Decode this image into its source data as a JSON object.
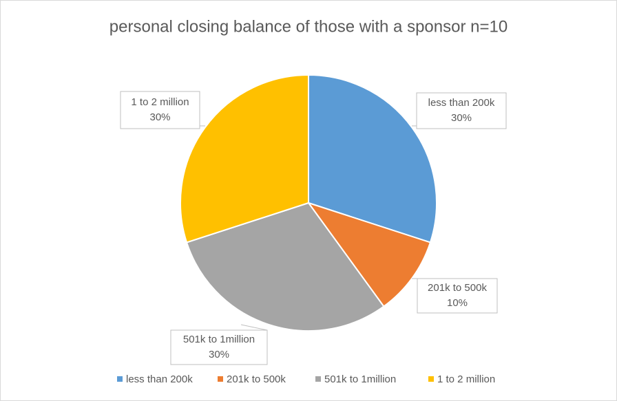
{
  "chart_data": {
    "type": "pie",
    "title": "personal closing balance of those with a sponsor  n=10",
    "categories": [
      "less than 200k",
      "201k to 500k",
      "501k to 1million",
      "1 to 2 million"
    ],
    "values": [
      30,
      10,
      30,
      30
    ],
    "value_labels": [
      "30%",
      "10%",
      "30%",
      "30%"
    ],
    "colors": [
      "#5b9bd5",
      "#ed7d31",
      "#a5a5a5",
      "#ffc000"
    ],
    "legend": "bottom"
  }
}
